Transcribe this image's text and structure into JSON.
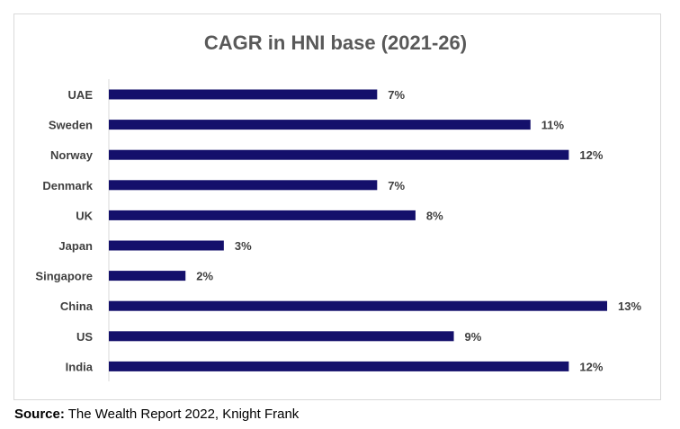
{
  "source": {
    "label": "Source:",
    "text": "The Wealth Report 2022, Knight Frank"
  },
  "colors": {
    "bar": "#14106b",
    "text": "#404040",
    "title": "#595959",
    "axis": "#d9d9d9"
  },
  "chart_data": {
    "type": "bar",
    "orientation": "horizontal",
    "title": "CAGR in HNI base (2021-26)",
    "xlabel": "",
    "ylabel": "",
    "categories": [
      "UAE",
      "Sweden",
      "Norway",
      "Denmark",
      "UK",
      "Japan",
      "Singapore",
      "China",
      "US",
      "India"
    ],
    "values": [
      7,
      11,
      12,
      7,
      8,
      3,
      2,
      13,
      9,
      12
    ],
    "value_labels": [
      "7%",
      "11%",
      "12%",
      "7%",
      "8%",
      "3%",
      "2%",
      "13%",
      "9%",
      "12%"
    ],
    "unit": "%",
    "xlim": [
      0,
      13
    ],
    "grid": false,
    "legend": "none"
  }
}
